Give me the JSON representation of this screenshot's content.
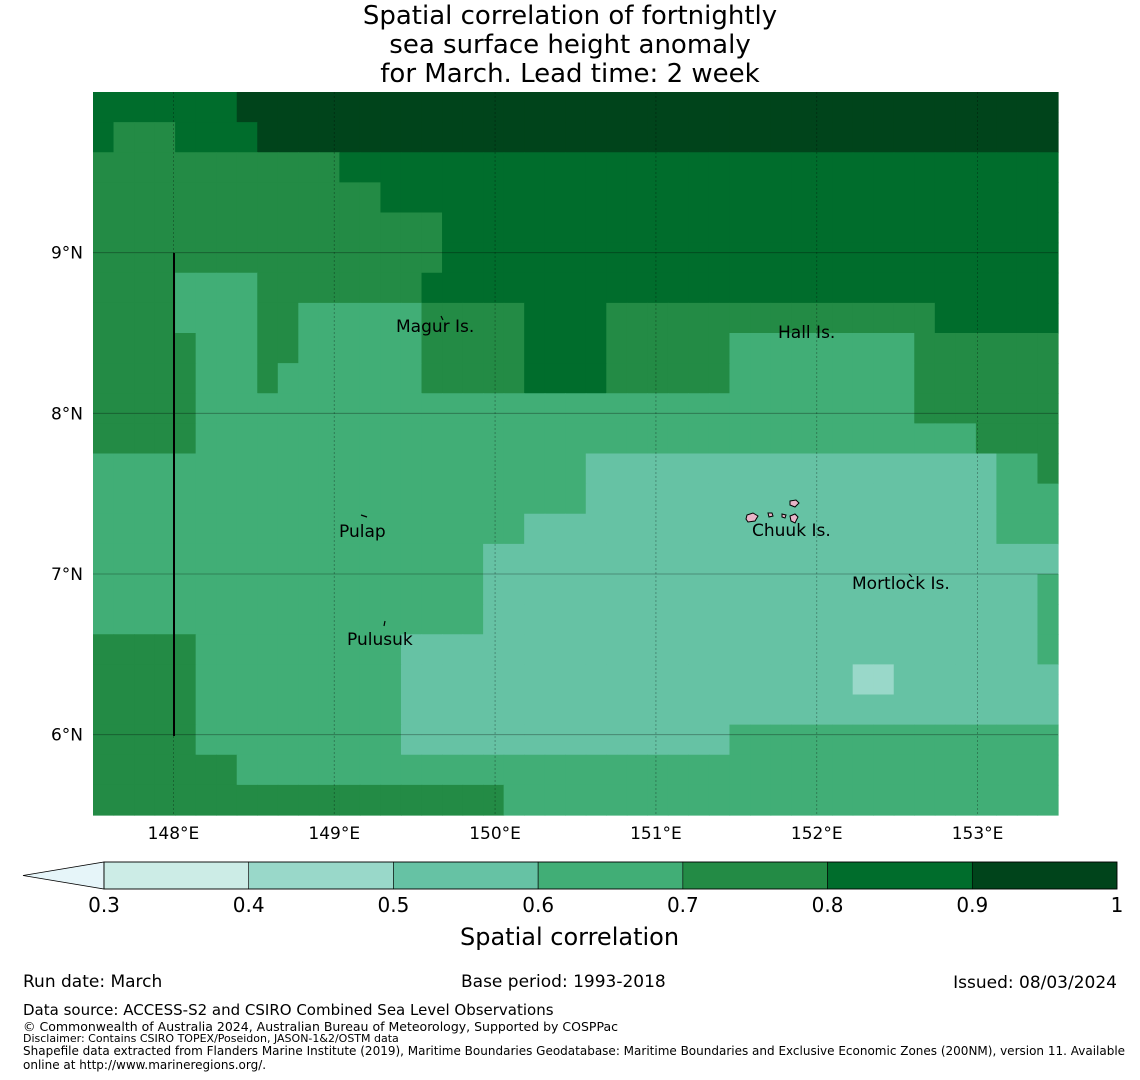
{
  "title": "Spatial correlation of fortnightly\nsea surface height anomaly\n for March. Lead time: 2 week",
  "map": {
    "lon_range": [
      147.5,
      153.5
    ],
    "lat_range": [
      5.5,
      10.0
    ],
    "x_ticks": [
      "148°E",
      "149°E",
      "150°E",
      "151°E",
      "152°E",
      "153°E"
    ],
    "y_ticks": [
      "9°N",
      "8°N",
      "7°N",
      "6°N"
    ],
    "places": [
      {
        "name": "Magur Is."
      },
      {
        "name": "Hall Is."
      },
      {
        "name": "Pulap"
      },
      {
        "name": "Chuuk Is."
      },
      {
        "name": "Mortlock Is."
      },
      {
        "name": "Pulusuk"
      }
    ],
    "grid_rows": [
      "55555556666666666666666666666666666666666666666",
      "54445555666666666666666666666666666666666666666",
      "44444444444455555555555555555555555555555555555",
      "44444444444444555555555555555555555555555555555",
      "44444444444444444555555555555555555555555555555",
      "44444444444444444555555555555555555555555555555",
      "44443333444444445555555555555555555555555555555",
      "44443333443333334444455554444444444444444555555",
      "44444333443333334444455554444443333333334444444",
      "44444333433333334444455554444443333333334444444",
      "44444333333333333333333333333333333333334444444",
      "44444333333333333333333333333333333333333334444",
      "33333333333333333333333322222222222222222222334",
      "33333333333333333333333322222222222222222222333",
      "33333333333333333333322222222222222222222222333",
      "33333333333333333332222222222222222222222222222",
      "33333333333333333332222222222222222222222222223",
      "33333333333333333332222222222222222222222222223",
      "44444333333333322222222222222222222222222222223",
      "44444333333333322222222222222222222221122222222",
      "44444333333333322222222222222222222222222222222",
      "44444333333333322222222222222223333333333333333",
      "44444443333333333333333333333333333333333333333",
      "44444444444444444444333333333333333333333333333"
    ]
  },
  "colorbar": {
    "ticks": [
      "0.3",
      "0.4",
      "0.5",
      "0.6",
      "0.7",
      "0.8",
      "0.9",
      "1"
    ],
    "label": "Spatial correlation",
    "under_color": "#e6f5f9",
    "colors": [
      "#ccece6",
      "#99d8c9",
      "#66c2a4",
      "#41ae76",
      "#238b45",
      "#006d2c",
      "#00441b"
    ]
  },
  "footer": {
    "run_date": "Run date: March",
    "base_period": "Base period: 1993-2018",
    "issued": "Issued: 08/03/2024",
    "data_source": "Data source: ACCESS-S2 and CSIRO Combined Sea Level Observations",
    "copyright": "© Commonwealth of Australia 2024, Australian Bureau of Meteorology, Supported by COSPPac",
    "disclaimer": "Disclaimer: Contains CSIRO TOPEX/Poseidon, JASON-1&2/OSTM data",
    "shapefile_line1": "Shapefile data extracted from Flanders Marine Institute (2019), Maritime Boundaries Geodatabase: Maritime Boundaries and Exclusive Economic Zones (200NM), version 11. Available",
    "shapefile_line2": "online at http://www.marineregions.org/."
  }
}
